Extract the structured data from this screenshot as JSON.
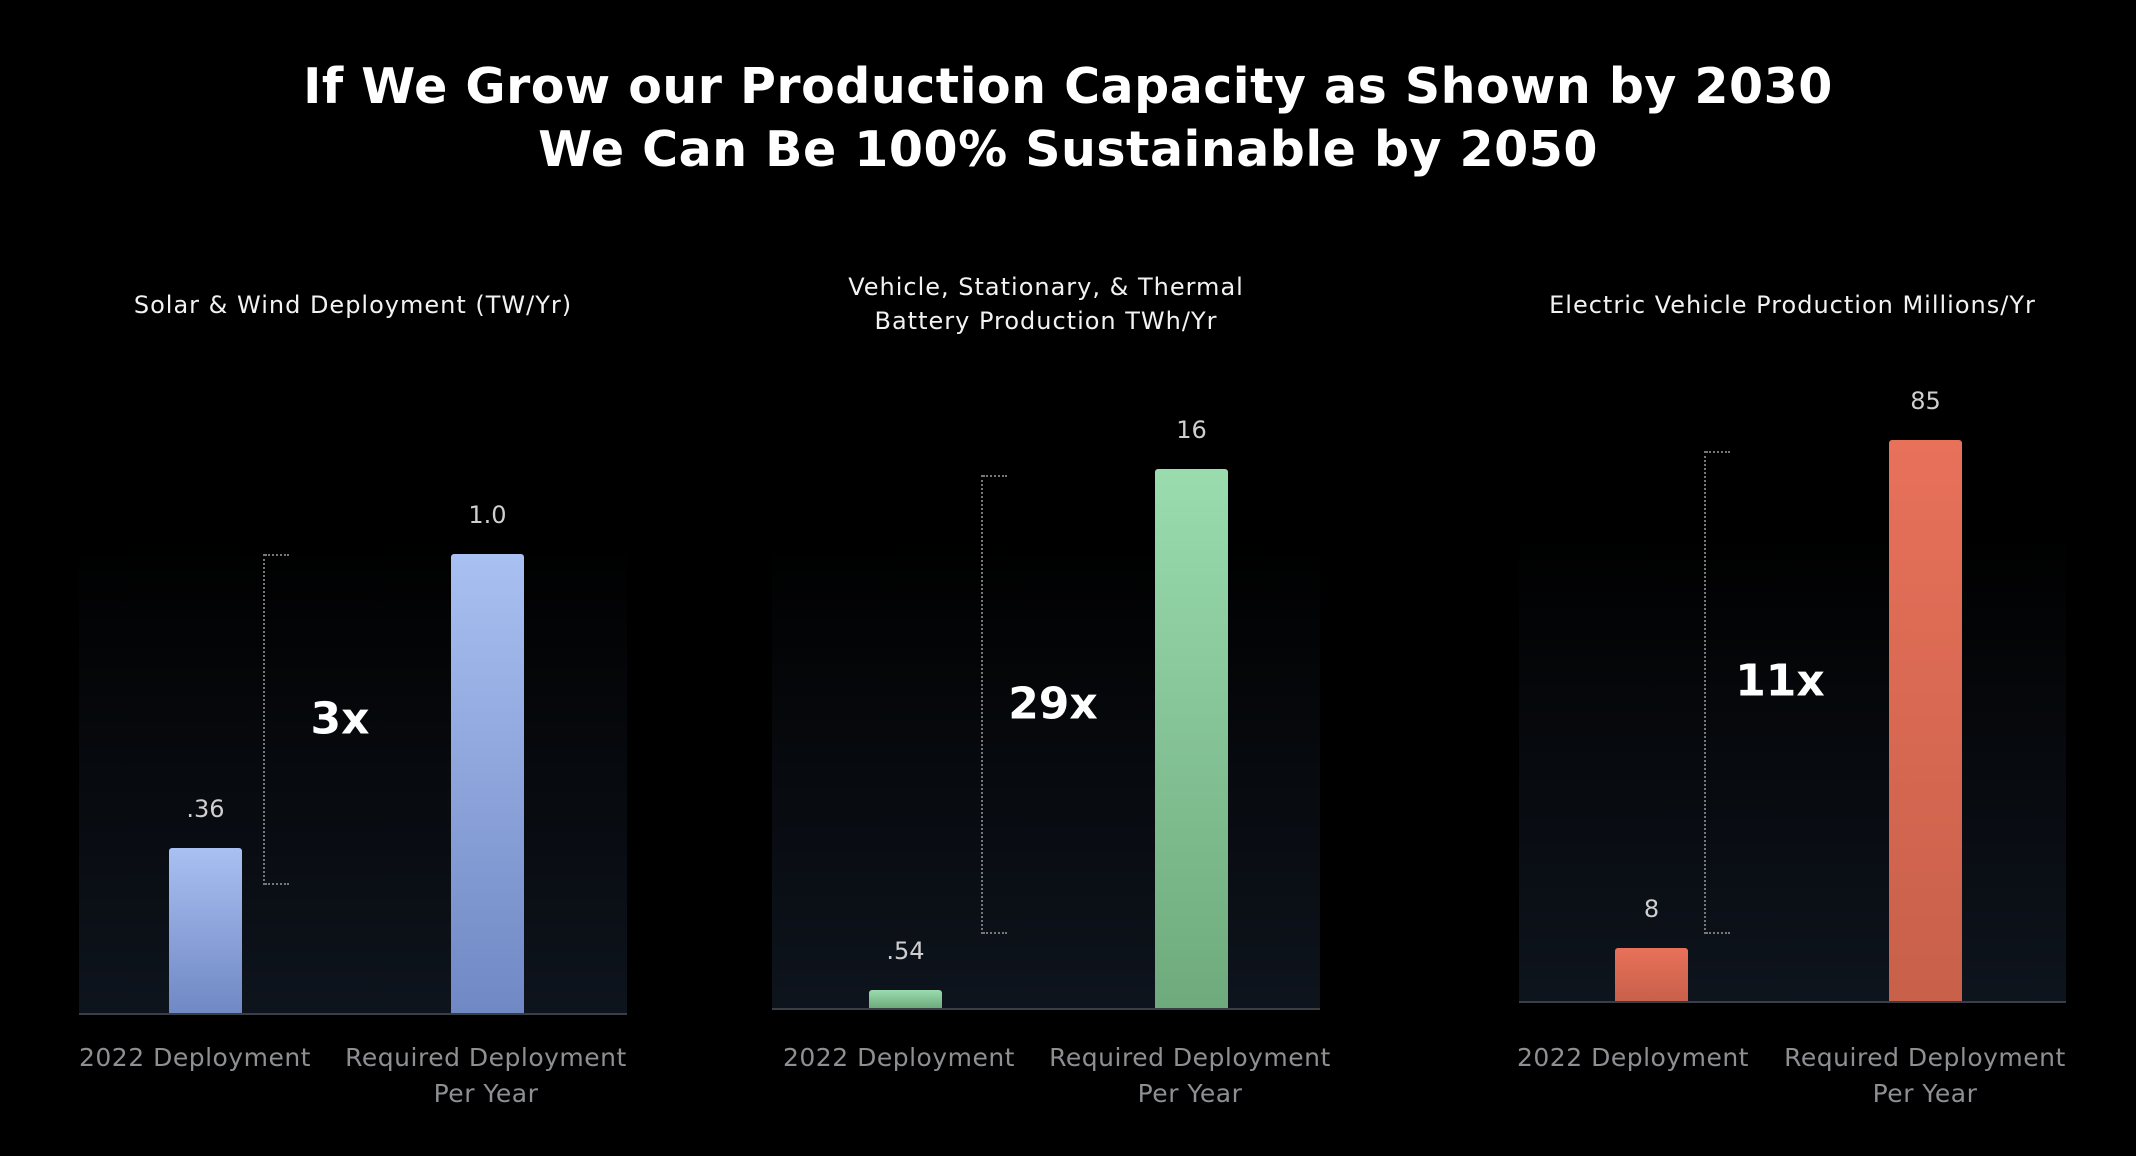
{
  "title_line1": "If We Grow our Production Capacity as Shown by 2030",
  "title_line2": "We Can Be 100% Sustainable by 2050",
  "chart_data": [
    {
      "type": "bar",
      "title": "Solar & Wind Deployment (TW/Yr)",
      "categories": [
        "2022 Deployment",
        "Required Deployment Per Year"
      ],
      "category_lines": [
        [
          "2022 Deployment"
        ],
        [
          "Required Deployment",
          "Per Year"
        ]
      ],
      "values": [
        0.36,
        1.0
      ],
      "value_labels": [
        ".36",
        "1.0"
      ],
      "multiplier": "3x",
      "colors": [
        "#a9c0f2",
        "#7088c4"
      ]
    },
    {
      "type": "bar",
      "title": "Vehicle, Stationary, & Thermal Battery Production TWh/Yr",
      "title_lines": [
        "Vehicle, Stationary, & Thermal",
        "Battery Production TWh/Yr"
      ],
      "categories": [
        "2022 Deployment",
        "Required Deployment Per Year"
      ],
      "category_lines": [
        [
          "2022 Deployment"
        ],
        [
          "Required Deployment",
          "Per Year"
        ]
      ],
      "values": [
        0.54,
        16
      ],
      "value_labels": [
        ".54",
        "16"
      ],
      "multiplier": "29x",
      "colors": [
        "#9adcae",
        "#6eaa7c"
      ]
    },
    {
      "type": "bar",
      "title": "Electric Vehicle Production Millions/Yr",
      "categories": [
        "2022 Deployment",
        "Required Deployment Per Year"
      ],
      "category_lines": [
        [
          "2022 Deployment"
        ],
        [
          "Required Deployment",
          "Per Year"
        ]
      ],
      "values": [
        8,
        85
      ],
      "value_labels": [
        "8",
        "85"
      ],
      "multiplier": "11x",
      "colors": [
        "#e8715a",
        "#c8604a"
      ]
    }
  ]
}
